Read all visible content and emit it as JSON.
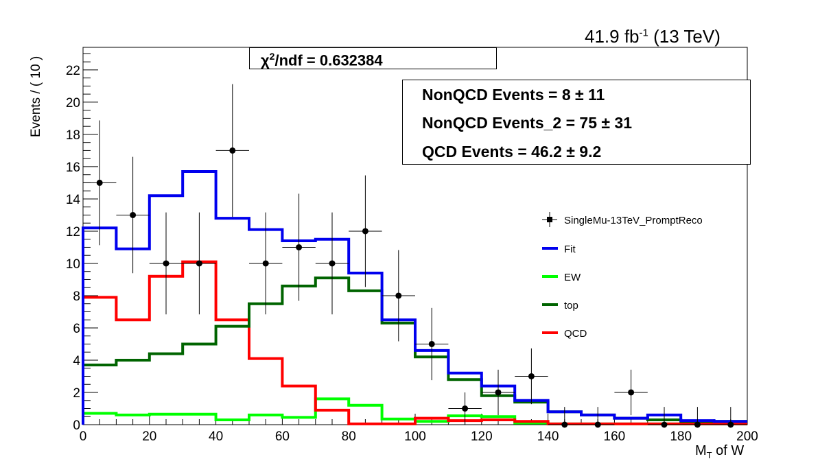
{
  "header": {
    "lumi": "41.9 fb",
    "lumi_exp": "-1",
    "lumi_suffix": " (13 TeV)"
  },
  "fit_box": {
    "chi_symbol": "χ",
    "chi_exp": "2",
    "chi_rest": "/ndf = 0.632384"
  },
  "stats_box": {
    "lines": [
      "NonQCD Events =  8 ± 11",
      "NonQCD Events_2 =  75 ± 31",
      "QCD Events =  46.2 ± 9.2"
    ]
  },
  "chart_data": {
    "type": "line",
    "title": "",
    "xlabel_main": "M",
    "xlabel_sub": "T",
    "xlabel_rest": " of W",
    "ylabel": "Events / ( 10 )",
    "xlim": [
      0,
      200
    ],
    "ylim": [
      0,
      23.4
    ],
    "x_ticks": [
      0,
      20,
      40,
      60,
      80,
      100,
      120,
      140,
      160,
      180,
      200
    ],
    "y_ticks": [
      0,
      2,
      4,
      6,
      8,
      10,
      12,
      14,
      16,
      18,
      20,
      22
    ],
    "bin_edges": [
      0,
      10,
      20,
      30,
      40,
      50,
      60,
      70,
      80,
      90,
      100,
      110,
      120,
      130,
      140,
      150,
      160,
      170,
      180,
      190,
      200
    ],
    "data_points": {
      "name": "SingleMu-13TeV_PromptReco",
      "x": [
        5,
        15,
        25,
        35,
        45,
        55,
        65,
        75,
        85,
        95,
        105,
        115,
        125,
        135,
        145,
        155,
        165,
        175,
        185,
        195
      ],
      "y": [
        15,
        13,
        10,
        10,
        17,
        10,
        11,
        10,
        12,
        8,
        5,
        1,
        2,
        3,
        0,
        0,
        2,
        0,
        0,
        0
      ],
      "err": [
        3.87,
        3.61,
        3.16,
        3.16,
        4.12,
        3.16,
        3.32,
        3.16,
        3.46,
        2.83,
        2.24,
        1.0,
        1.41,
        1.73,
        1.1,
        1.1,
        1.41,
        1.1,
        1.1,
        1.1
      ]
    },
    "series": [
      {
        "name": "Fit",
        "color": "#0000ee",
        "values": [
          12.2,
          10.9,
          14.2,
          15.7,
          12.8,
          12.1,
          11.4,
          11.5,
          9.4,
          6.5,
          4.6,
          3.2,
          2.4,
          1.5,
          0.8,
          0.6,
          0.4,
          0.6,
          0.25,
          0.2
        ]
      },
      {
        "name": "EW",
        "color": "#00ff00",
        "values": [
          0.7,
          0.6,
          0.65,
          0.65,
          0.3,
          0.6,
          0.45,
          1.6,
          1.2,
          0.35,
          0.2,
          0.55,
          0.5,
          0.1,
          0.05,
          0.05,
          0.05,
          0.05,
          0.05,
          0.05
        ]
      },
      {
        "name": "top",
        "color": "#006400",
        "values": [
          3.7,
          4.0,
          4.4,
          5.0,
          6.1,
          7.5,
          8.6,
          9.1,
          8.3,
          6.3,
          4.2,
          2.8,
          1.8,
          1.4,
          0.8,
          0.6,
          0.4,
          0.3,
          0.2,
          0.2
        ]
      },
      {
        "name": "QCD",
        "color": "#ff0000",
        "values": [
          7.9,
          6.5,
          9.2,
          10.1,
          6.5,
          4.1,
          2.4,
          0.9,
          0.05,
          0.05,
          0.4,
          0.25,
          0.3,
          0.2,
          0.05,
          0.05,
          0.05,
          0.05,
          0.05,
          0.05
        ]
      }
    ],
    "legend": {
      "placement": "right",
      "entries": [
        "SingleMu-13TeV_PromptReco",
        "Fit",
        "EW",
        "top",
        "QCD"
      ]
    },
    "grid": false
  }
}
